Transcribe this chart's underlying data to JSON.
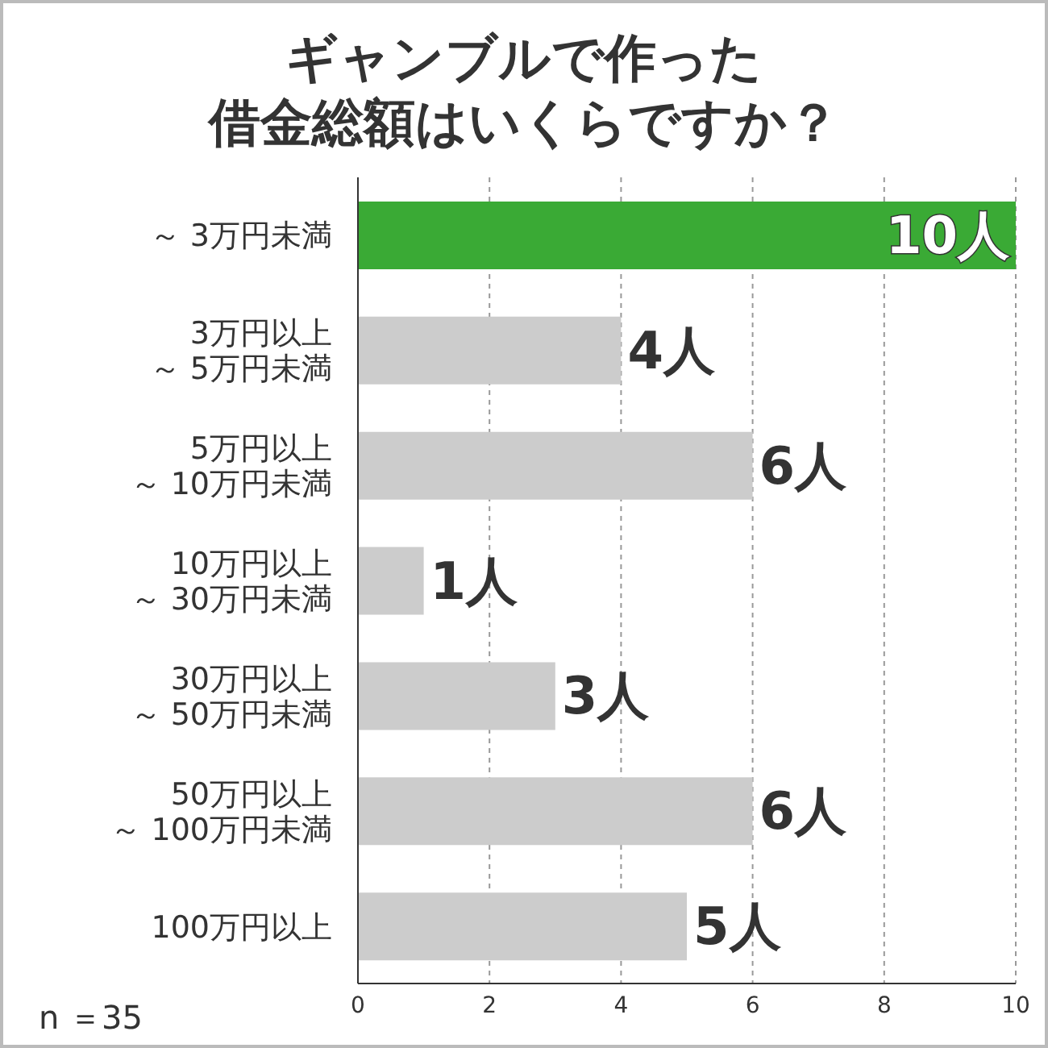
{
  "chart_data": {
    "type": "bar",
    "orientation": "horizontal",
    "title": "ギャンブルで作った",
    "subtitle": "借金総額はいくらですか？",
    "categories": [
      "～ 3万円未満",
      "3万円以上～ 5万円未満",
      "5万円以上～ 10万円未満",
      "10万円以上～ 30万円未満",
      "30万円以上～ 50万円未満",
      "50万円以上～ 100万円未満",
      "100万円以上"
    ],
    "values": [
      10,
      4,
      6,
      1,
      3,
      6,
      5
    ],
    "colors": [
      "#3aaa35",
      "#cccccc",
      "#cccccc",
      "#cccccc",
      "#cccccc",
      "#cccccc",
      "#cccccc"
    ],
    "value_labels": [
      "10人",
      "4人",
      "6人",
      "1人",
      "3人",
      "6人",
      "5人"
    ],
    "xlim": [
      0,
      10
    ],
    "xticks": [
      0,
      2,
      4,
      6,
      8,
      10
    ],
    "grid": "x",
    "annotations": [
      "n ＝35"
    ]
  }
}
